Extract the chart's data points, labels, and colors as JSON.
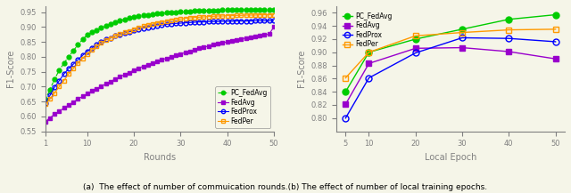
{
  "left": {
    "x_ticks": [
      1,
      10,
      20,
      30,
      40,
      50
    ],
    "xlabel": "Rounds",
    "ylabel": "F1-Score",
    "ylim": [
      0.55,
      0.97
    ],
    "yticks": [
      0.55,
      0.6,
      0.65,
      0.7,
      0.75,
      0.8,
      0.85,
      0.9,
      0.95
    ],
    "series": {
      "PC_FedAvg": {
        "color": "#00cc00",
        "marker": "o",
        "fillstyle": "full",
        "linestyle": "--",
        "markersize": 3.5,
        "x": [
          1,
          2,
          3,
          4,
          5,
          6,
          7,
          8,
          9,
          10,
          11,
          12,
          13,
          14,
          15,
          16,
          17,
          18,
          19,
          20,
          21,
          22,
          23,
          24,
          25,
          26,
          27,
          28,
          29,
          30,
          31,
          32,
          33,
          34,
          35,
          36,
          37,
          38,
          39,
          40,
          41,
          42,
          43,
          44,
          45,
          46,
          47,
          48,
          49,
          50
        ],
        "y": [
          0.655,
          0.69,
          0.725,
          0.755,
          0.778,
          0.8,
          0.82,
          0.84,
          0.858,
          0.873,
          0.882,
          0.89,
          0.897,
          0.903,
          0.91,
          0.916,
          0.921,
          0.926,
          0.93,
          0.934,
          0.937,
          0.939,
          0.941,
          0.943,
          0.945,
          0.946,
          0.948,
          0.949,
          0.95,
          0.951,
          0.952,
          0.953,
          0.954,
          0.954,
          0.955,
          0.955,
          0.956,
          0.956,
          0.957,
          0.957,
          0.957,
          0.958,
          0.958,
          0.958,
          0.958,
          0.958,
          0.958,
          0.959,
          0.959,
          0.959
        ]
      },
      "FedAvg": {
        "color": "#9900cc",
        "marker": "s",
        "fillstyle": "full",
        "linestyle": "-",
        "markersize": 3.5,
        "x": [
          1,
          2,
          3,
          4,
          5,
          6,
          7,
          8,
          9,
          10,
          11,
          12,
          13,
          14,
          15,
          16,
          17,
          18,
          19,
          20,
          21,
          22,
          23,
          24,
          25,
          26,
          27,
          28,
          29,
          30,
          31,
          32,
          33,
          34,
          35,
          36,
          37,
          38,
          39,
          40,
          41,
          42,
          43,
          44,
          45,
          46,
          47,
          48,
          49,
          50
        ],
        "y": [
          0.582,
          0.595,
          0.607,
          0.617,
          0.628,
          0.638,
          0.648,
          0.658,
          0.667,
          0.676,
          0.685,
          0.693,
          0.701,
          0.709,
          0.717,
          0.725,
          0.733,
          0.74,
          0.747,
          0.755,
          0.762,
          0.768,
          0.774,
          0.779,
          0.785,
          0.79,
          0.795,
          0.8,
          0.805,
          0.81,
          0.814,
          0.819,
          0.823,
          0.828,
          0.832,
          0.836,
          0.84,
          0.844,
          0.847,
          0.85,
          0.854,
          0.857,
          0.86,
          0.863,
          0.866,
          0.869,
          0.871,
          0.874,
          0.876,
          0.9
        ]
      },
      "FedProx": {
        "color": "#0000ff",
        "marker": "o",
        "fillstyle": "none",
        "linestyle": "-",
        "markersize": 3.5,
        "x": [
          1,
          2,
          3,
          4,
          5,
          6,
          7,
          8,
          9,
          10,
          11,
          12,
          13,
          14,
          15,
          16,
          17,
          18,
          19,
          20,
          21,
          22,
          23,
          24,
          25,
          26,
          27,
          28,
          29,
          30,
          31,
          32,
          33,
          34,
          35,
          36,
          37,
          38,
          39,
          40,
          41,
          42,
          43,
          44,
          45,
          46,
          47,
          48,
          49,
          50
        ],
        "y": [
          0.645,
          0.67,
          0.698,
          0.72,
          0.742,
          0.76,
          0.775,
          0.79,
          0.805,
          0.818,
          0.83,
          0.84,
          0.85,
          0.858,
          0.863,
          0.87,
          0.875,
          0.88,
          0.884,
          0.888,
          0.892,
          0.896,
          0.899,
          0.902,
          0.905,
          0.907,
          0.909,
          0.911,
          0.912,
          0.913,
          0.914,
          0.915,
          0.916,
          0.917,
          0.917,
          0.918,
          0.918,
          0.918,
          0.919,
          0.919,
          0.919,
          0.92,
          0.92,
          0.92,
          0.92,
          0.921,
          0.921,
          0.921,
          0.921,
          0.921
        ]
      },
      "FedPer": {
        "color": "#ff9900",
        "marker": "s",
        "fillstyle": "none",
        "linestyle": "-",
        "markersize": 3.5,
        "x": [
          1,
          2,
          3,
          4,
          5,
          6,
          7,
          8,
          9,
          10,
          11,
          12,
          13,
          14,
          15,
          16,
          17,
          18,
          19,
          20,
          21,
          22,
          23,
          24,
          25,
          26,
          27,
          28,
          29,
          30,
          31,
          32,
          33,
          34,
          35,
          36,
          37,
          38,
          39,
          40,
          41,
          42,
          43,
          44,
          45,
          46,
          47,
          48,
          49,
          50
        ],
        "y": [
          0.64,
          0.658,
          0.678,
          0.7,
          0.72,
          0.742,
          0.76,
          0.778,
          0.795,
          0.81,
          0.823,
          0.835,
          0.846,
          0.856,
          0.863,
          0.87,
          0.876,
          0.882,
          0.887,
          0.893,
          0.898,
          0.903,
          0.907,
          0.91,
          0.914,
          0.917,
          0.92,
          0.922,
          0.925,
          0.927,
          0.929,
          0.931,
          0.932,
          0.933,
          0.934,
          0.935,
          0.936,
          0.937,
          0.937,
          0.938,
          0.938,
          0.939,
          0.939,
          0.94,
          0.94,
          0.94,
          0.941,
          0.941,
          0.941,
          0.941
        ]
      }
    },
    "legend_order": [
      "PC_FedAvg",
      "FedAvg",
      "FedProx",
      "FedPer"
    ]
  },
  "right": {
    "x_vals": [
      5,
      10,
      20,
      30,
      40,
      50
    ],
    "xlabel": "Local Epoch",
    "ylabel": "F1-Score",
    "ylim": [
      0.78,
      0.97
    ],
    "yticks": [
      0.8,
      0.82,
      0.84,
      0.86,
      0.88,
      0.9,
      0.92,
      0.94,
      0.96
    ],
    "series": {
      "PC_FedAvg": {
        "color": "#00cc00",
        "marker": "o",
        "fillstyle": "full",
        "linestyle": "-",
        "markersize": 5,
        "y": [
          0.84,
          0.9,
          0.92,
          0.935,
          0.95,
          0.957
        ]
      },
      "FedAvg": {
        "color": "#9900cc",
        "marker": "s",
        "fillstyle": "full",
        "linestyle": "-",
        "markersize": 5,
        "y": [
          0.821,
          0.883,
          0.906,
          0.907,
          0.901,
          0.89
        ]
      },
      "FedProx": {
        "color": "#0000ff",
        "marker": "o",
        "fillstyle": "none",
        "linestyle": "-",
        "markersize": 5,
        "y": [
          0.8,
          0.861,
          0.899,
          0.922,
          0.921,
          0.916
        ]
      },
      "FedPer": {
        "color": "#ff9900",
        "marker": "s",
        "fillstyle": "none",
        "linestyle": "-",
        "markersize": 5,
        "y": [
          0.861,
          0.9,
          0.925,
          0.93,
          0.934,
          0.935
        ]
      }
    },
    "legend_order": [
      "PC_FedAvg",
      "FedAvg",
      "FedProx",
      "FedPer"
    ]
  },
  "caption": "(a)  The effect of number of commuication rounds.(b) The effect of number of local training epochs.",
  "background_color": "#f5f5e8"
}
